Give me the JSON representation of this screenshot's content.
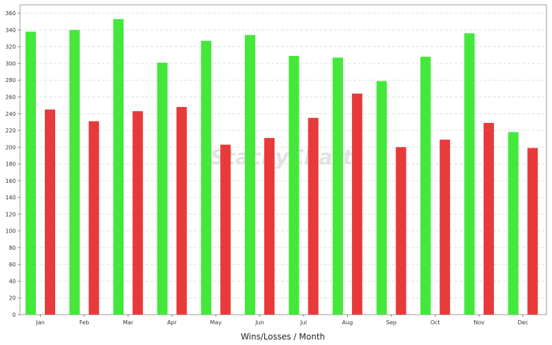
{
  "chart_data": {
    "type": "bar",
    "title": "",
    "xlabel": "Wins/Losses / Month",
    "ylabel": "",
    "categories": [
      "Jan",
      "Feb",
      "Mar",
      "Apr",
      "May",
      "Jun",
      "Jul",
      "Aug",
      "Sep",
      "Oct",
      "Nov",
      "Dec"
    ],
    "series": [
      {
        "color": "#44e83a",
        "values": [
          338,
          340,
          353,
          301,
          327,
          334,
          309,
          307,
          279,
          308,
          336,
          218
        ]
      },
      {
        "color": "#e83a3a",
        "values": [
          245,
          231,
          243,
          248,
          203,
          211,
          235,
          264,
          200,
          209,
          229,
          199
        ]
      }
    ],
    "ylim": [
      0,
      370
    ],
    "yticks": [
      0,
      20,
      40,
      60,
      80,
      100,
      120,
      140,
      160,
      180,
      200,
      220,
      240,
      260,
      280,
      300,
      320,
      340,
      360
    ],
    "grid": true,
    "legend": "none",
    "watermark": "StackyChart"
  }
}
